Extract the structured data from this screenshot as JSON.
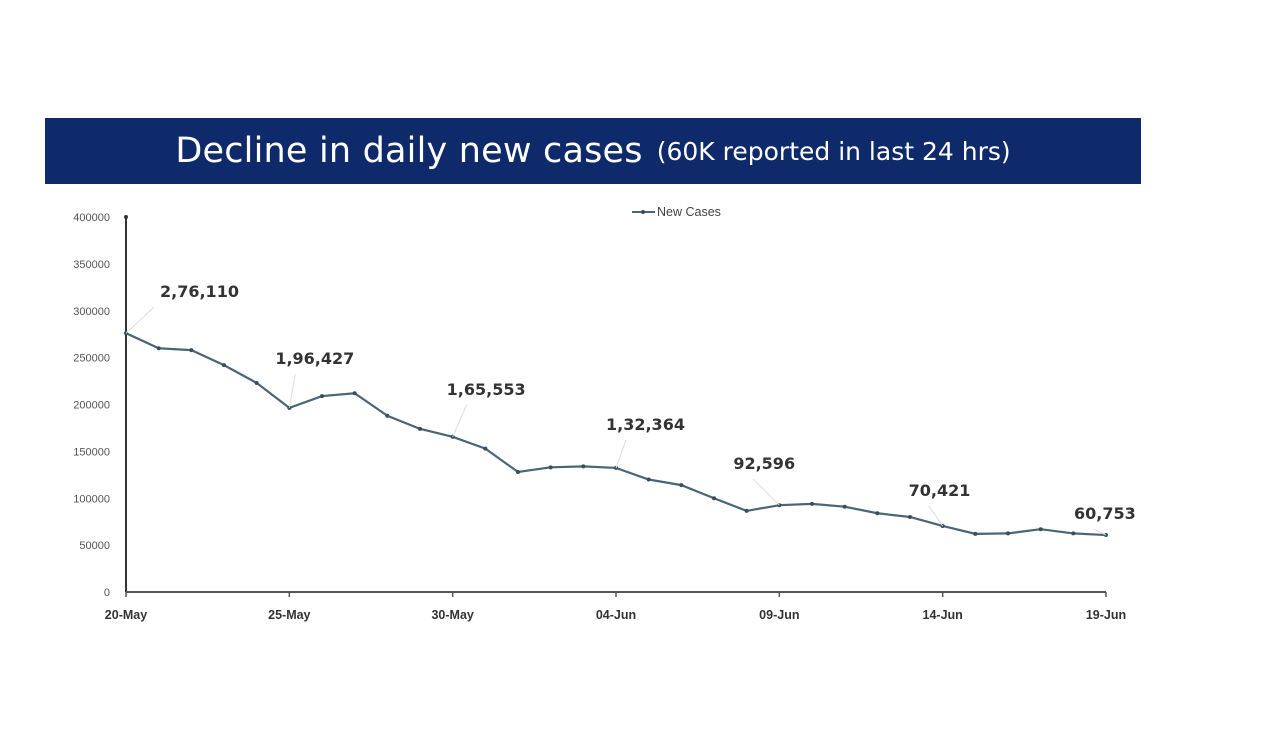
{
  "title": {
    "main": "Decline in daily new cases",
    "sub": "(60K reported in last 24 hrs)"
  },
  "colors": {
    "banner": "#0f2a6b",
    "line": "#4a6478"
  },
  "chart_data": {
    "type": "line",
    "title": "Decline in daily new cases (60K reported in last 24 hrs)",
    "xlabel": "",
    "ylabel": "",
    "ylim": [
      0,
      400000
    ],
    "yticks": [
      "0",
      "50000",
      "100000",
      "150000",
      "200000",
      "250000",
      "300000",
      "350000",
      "400000"
    ],
    "xtick_labels": [
      "20-May",
      "25-May",
      "30-May",
      "04-Jun",
      "09-Jun",
      "14-Jun",
      "19-Jun"
    ],
    "legend": {
      "position": "top-center",
      "entries": [
        "New Cases"
      ]
    },
    "grid": false,
    "x": [
      "20-May",
      "21-May",
      "22-May",
      "23-May",
      "24-May",
      "25-May",
      "26-May",
      "27-May",
      "28-May",
      "29-May",
      "30-May",
      "31-May",
      "01-Jun",
      "02-Jun",
      "03-Jun",
      "04-Jun",
      "05-Jun",
      "06-Jun",
      "07-Jun",
      "08-Jun",
      "09-Jun",
      "10-Jun",
      "11-Jun",
      "12-Jun",
      "13-Jun",
      "14-Jun",
      "15-Jun",
      "16-Jun",
      "17-Jun",
      "18-Jun",
      "19-Jun"
    ],
    "series": [
      {
        "name": "New Cases",
        "values": [
          276110,
          260000,
          258000,
          242000,
          223000,
          196427,
          209000,
          212000,
          188000,
          174000,
          165553,
          153000,
          128000,
          133000,
          134000,
          132364,
          120000,
          114000,
          100000,
          86500,
          92596,
          94000,
          91000,
          84000,
          80000,
          70421,
          62000,
          62500,
          67000,
          62500,
          60753
        ]
      }
    ],
    "annotations": [
      {
        "index": 0,
        "text": "2,76,110"
      },
      {
        "index": 5,
        "text": "1,96,427"
      },
      {
        "index": 10,
        "text": "1,65,553"
      },
      {
        "index": 15,
        "text": "1,32,364"
      },
      {
        "index": 20,
        "text": "92,596"
      },
      {
        "index": 25,
        "text": "70,421"
      },
      {
        "index": 30,
        "text": "60,753"
      }
    ]
  }
}
